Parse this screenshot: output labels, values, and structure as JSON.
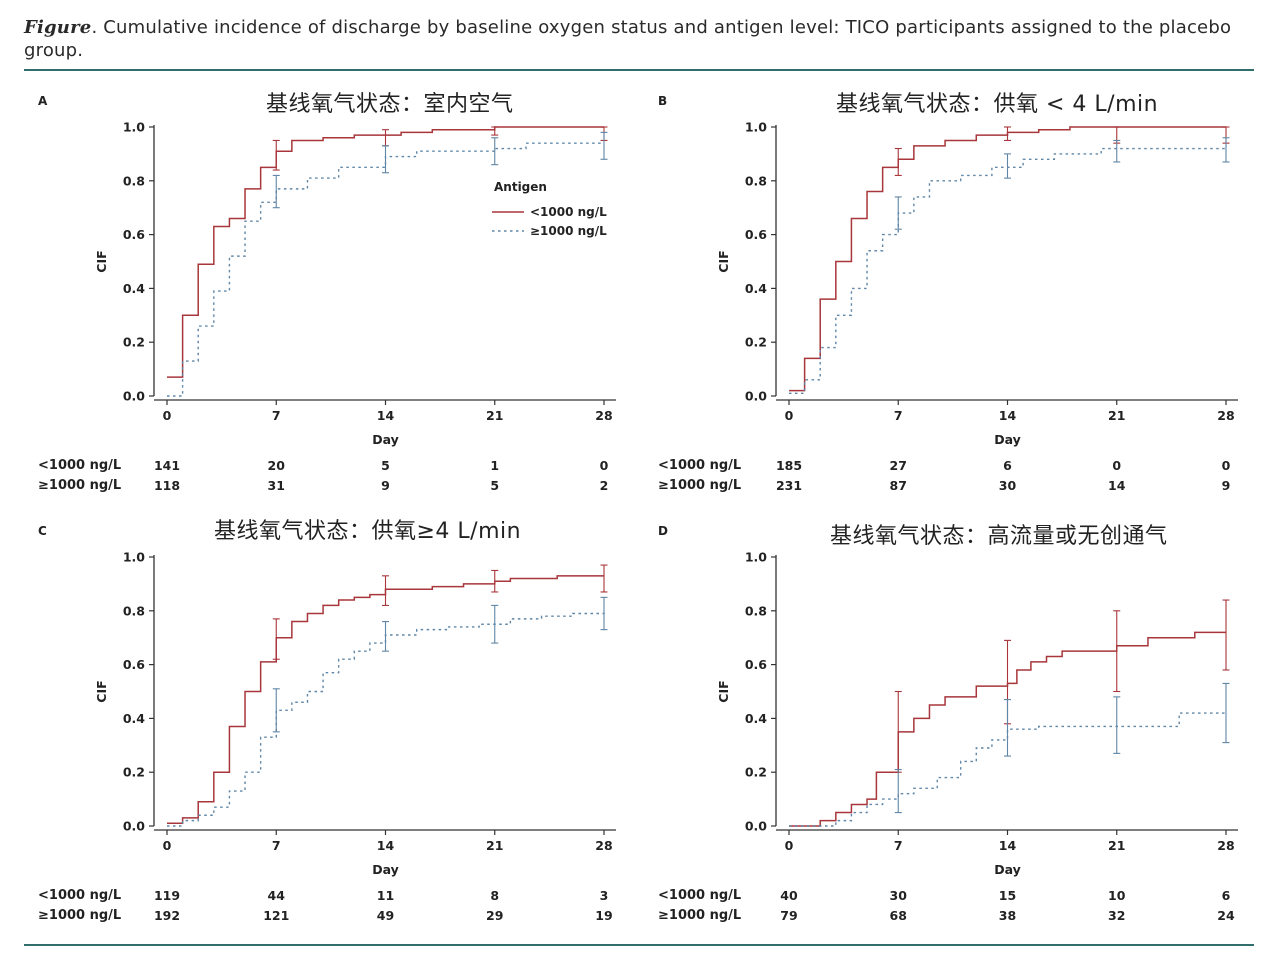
{
  "caption": {
    "lead": "Figure",
    "text": ". Cumulative incidence of discharge by baseline oxygen status and antigen level: TICO participants assigned to the placebo group."
  },
  "colors": {
    "solid": "#a8363a",
    "dashed": "#5f86a6",
    "axis": "#333333",
    "rule": "#2f6e6b"
  },
  "chart_data": [
    {
      "panel": "A",
      "type": "line",
      "title": "基线氧气状态：室内空气",
      "xlabel": "Day",
      "ylabel": "CIF",
      "xlim": [
        0,
        28
      ],
      "ylim": [
        0,
        1.0
      ],
      "xticks": [
        "0",
        "7",
        "14",
        "21",
        "28"
      ],
      "yticks": [
        "0.0",
        "0.2",
        "0.4",
        "0.6",
        "0.8",
        "1.0"
      ],
      "legend": {
        "title": "Antigen",
        "position": "right-middle",
        "items": [
          "<1000 ng/L",
          "≥1000 ng/L"
        ]
      },
      "series": [
        {
          "name": "<1000 ng/L",
          "style": "solid",
          "steps": [
            [
              0,
              0.07
            ],
            [
              1,
              0.3
            ],
            [
              2,
              0.49
            ],
            [
              3,
              0.63
            ],
            [
              4,
              0.66
            ],
            [
              5,
              0.77
            ],
            [
              6,
              0.85
            ],
            [
              7,
              0.91
            ],
            [
              8,
              0.95
            ],
            [
              10,
              0.96
            ],
            [
              12,
              0.97
            ],
            [
              15,
              0.98
            ],
            [
              17,
              0.99
            ],
            [
              21,
              1.0
            ],
            [
              28,
              1.0
            ]
          ],
          "errorbars": [
            [
              7,
              0.84,
              0.95
            ],
            [
              14,
              0.93,
              0.99
            ],
            [
              21,
              0.97,
              1.0
            ],
            [
              28,
              0.95,
              1.0
            ]
          ]
        },
        {
          "name": "≥1000 ng/L",
          "style": "dashed",
          "steps": [
            [
              0,
              0.0
            ],
            [
              1,
              0.13
            ],
            [
              2,
              0.26
            ],
            [
              3,
              0.39
            ],
            [
              4,
              0.52
            ],
            [
              5,
              0.65
            ],
            [
              6,
              0.72
            ],
            [
              7,
              0.77
            ],
            [
              9,
              0.81
            ],
            [
              11,
              0.85
            ],
            [
              14,
              0.89
            ],
            [
              16,
              0.91
            ],
            [
              21,
              0.92
            ],
            [
              23,
              0.94
            ],
            [
              28,
              0.94
            ]
          ],
          "errorbars": [
            [
              7,
              0.7,
              0.82
            ],
            [
              14,
              0.83,
              0.93
            ],
            [
              21,
              0.86,
              0.96
            ],
            [
              28,
              0.88,
              0.98
            ]
          ]
        }
      ],
      "risk_table": {
        "labels": [
          "<1000 ng/L",
          "≥1000 ng/L"
        ],
        "days": [
          0,
          7,
          14,
          21,
          28
        ],
        "rows": [
          [
            "141",
            "20",
            "5",
            "1",
            "0"
          ],
          [
            "118",
            "31",
            "9",
            "5",
            "2"
          ]
        ]
      }
    },
    {
      "panel": "B",
      "type": "line",
      "title": "基线氧气状态：供氧 < 4 L/min",
      "xlabel": "Day",
      "ylabel": "CIF",
      "xlim": [
        0,
        28
      ],
      "ylim": [
        0,
        1.0
      ],
      "xticks": [
        "0",
        "7",
        "14",
        "21",
        "28"
      ],
      "yticks": [
        "0.0",
        "0.2",
        "0.4",
        "0.6",
        "0.8",
        "1.0"
      ],
      "series": [
        {
          "name": "<1000 ng/L",
          "style": "solid",
          "steps": [
            [
              0,
              0.02
            ],
            [
              1,
              0.14
            ],
            [
              2,
              0.36
            ],
            [
              3,
              0.5
            ],
            [
              4,
              0.66
            ],
            [
              5,
              0.76
            ],
            [
              6,
              0.85
            ],
            [
              7,
              0.88
            ],
            [
              8,
              0.93
            ],
            [
              10,
              0.95
            ],
            [
              12,
              0.97
            ],
            [
              14,
              0.98
            ],
            [
              16,
              0.99
            ],
            [
              18,
              1.0
            ],
            [
              28,
              1.0
            ]
          ],
          "errorbars": [
            [
              7,
              0.82,
              0.92
            ],
            [
              14,
              0.95,
              1.0
            ],
            [
              21,
              0.94,
              1.0
            ],
            [
              28,
              0.94,
              1.0
            ]
          ]
        },
        {
          "name": "≥1000 ng/L",
          "style": "dashed",
          "steps": [
            [
              0,
              0.01
            ],
            [
              1,
              0.06
            ],
            [
              2,
              0.18
            ],
            [
              3,
              0.3
            ],
            [
              4,
              0.4
            ],
            [
              5,
              0.54
            ],
            [
              6,
              0.6
            ],
            [
              7,
              0.68
            ],
            [
              8,
              0.74
            ],
            [
              9,
              0.8
            ],
            [
              11,
              0.82
            ],
            [
              13,
              0.85
            ],
            [
              15,
              0.88
            ],
            [
              17,
              0.9
            ],
            [
              20,
              0.92
            ],
            [
              28,
              0.93
            ]
          ],
          "errorbars": [
            [
              7,
              0.62,
              0.74
            ],
            [
              14,
              0.81,
              0.9
            ],
            [
              21,
              0.87,
              0.95
            ],
            [
              28,
              0.87,
              0.96
            ]
          ]
        }
      ],
      "risk_table": {
        "labels": [
          "<1000 ng/L",
          "≥1000 ng/L"
        ],
        "days": [
          0,
          7,
          14,
          21,
          28
        ],
        "rows": [
          [
            "185",
            "27",
            "6",
            "0",
            "0"
          ],
          [
            "231",
            "87",
            "30",
            "14",
            "9"
          ]
        ]
      }
    },
    {
      "panel": "C",
      "type": "line",
      "title": "基线氧气状态：供氧≥4 L/min",
      "xlabel": "Day",
      "ylabel": "CIF",
      "xlim": [
        0,
        28
      ],
      "ylim": [
        0,
        1.0
      ],
      "xticks": [
        "0",
        "7",
        "14",
        "21",
        "28"
      ],
      "yticks": [
        "0.0",
        "0.2",
        "0.4",
        "0.6",
        "0.8",
        "1.0"
      ],
      "series": [
        {
          "name": "<1000 ng/L",
          "style": "solid",
          "steps": [
            [
              0,
              0.01
            ],
            [
              1,
              0.03
            ],
            [
              2,
              0.09
            ],
            [
              3,
              0.2
            ],
            [
              4,
              0.37
            ],
            [
              5,
              0.5
            ],
            [
              6,
              0.61
            ],
            [
              7,
              0.7
            ],
            [
              8,
              0.76
            ],
            [
              9,
              0.79
            ],
            [
              10,
              0.82
            ],
            [
              11,
              0.84
            ],
            [
              12,
              0.85
            ],
            [
              13,
              0.86
            ],
            [
              14,
              0.88
            ],
            [
              17,
              0.89
            ],
            [
              19,
              0.9
            ],
            [
              21,
              0.91
            ],
            [
              22,
              0.92
            ],
            [
              25,
              0.93
            ],
            [
              28,
              0.93
            ]
          ],
          "errorbars": [
            [
              7,
              0.62,
              0.77
            ],
            [
              14,
              0.82,
              0.93
            ],
            [
              21,
              0.87,
              0.95
            ],
            [
              28,
              0.87,
              0.97
            ]
          ]
        },
        {
          "name": "≥1000 ng/L",
          "style": "dashed",
          "steps": [
            [
              0,
              0.0
            ],
            [
              1,
              0.02
            ],
            [
              2,
              0.04
            ],
            [
              3,
              0.07
            ],
            [
              4,
              0.13
            ],
            [
              5,
              0.2
            ],
            [
              6,
              0.33
            ],
            [
              7,
              0.43
            ],
            [
              8,
              0.46
            ],
            [
              9,
              0.5
            ],
            [
              10,
              0.57
            ],
            [
              11,
              0.62
            ],
            [
              12,
              0.65
            ],
            [
              13,
              0.68
            ],
            [
              14,
              0.71
            ],
            [
              16,
              0.73
            ],
            [
              18,
              0.74
            ],
            [
              20,
              0.75
            ],
            [
              22,
              0.77
            ],
            [
              24,
              0.78
            ],
            [
              26,
              0.79
            ],
            [
              28,
              0.8
            ]
          ],
          "errorbars": [
            [
              7,
              0.35,
              0.51
            ],
            [
              14,
              0.65,
              0.76
            ],
            [
              21,
              0.68,
              0.82
            ],
            [
              28,
              0.73,
              0.85
            ]
          ]
        }
      ],
      "risk_table": {
        "labels": [
          "<1000 ng/L",
          "≥1000 ng/L"
        ],
        "days": [
          0,
          7,
          14,
          21,
          28
        ],
        "rows": [
          [
            "119",
            "44",
            "11",
            "8",
            "3"
          ],
          [
            "192",
            "121",
            "49",
            "29",
            "19"
          ]
        ]
      }
    },
    {
      "panel": "D",
      "type": "line",
      "title": "基线氧气状态：高流量或无创通气",
      "xlabel": "Day",
      "ylabel": "CIF",
      "xlim": [
        0,
        28
      ],
      "ylim": [
        0,
        1.0
      ],
      "xticks": [
        "0",
        "7",
        "14",
        "21",
        "28"
      ],
      "yticks": [
        "0.0",
        "0.2",
        "0.4",
        "0.6",
        "0.8",
        "1.0"
      ],
      "series": [
        {
          "name": "<1000 ng/L",
          "style": "solid",
          "steps": [
            [
              0,
              0.0
            ],
            [
              2,
              0.02
            ],
            [
              3,
              0.05
            ],
            [
              4,
              0.08
            ],
            [
              5,
              0.1
            ],
            [
              5.6,
              0.2
            ],
            [
              7,
              0.35
            ],
            [
              8,
              0.4
            ],
            [
              9,
              0.45
            ],
            [
              10,
              0.48
            ],
            [
              12,
              0.52
            ],
            [
              14,
              0.53
            ],
            [
              14.6,
              0.58
            ],
            [
              15.5,
              0.61
            ],
            [
              16.5,
              0.63
            ],
            [
              17.5,
              0.65
            ],
            [
              21,
              0.67
            ],
            [
              23,
              0.7
            ],
            [
              26,
              0.72
            ],
            [
              28,
              0.72
            ]
          ],
          "errorbars": [
            [
              7,
              0.2,
              0.5
            ],
            [
              14,
              0.38,
              0.69
            ],
            [
              21,
              0.5,
              0.8
            ],
            [
              28,
              0.58,
              0.84
            ]
          ]
        },
        {
          "name": "≥1000 ng/L",
          "style": "dashed",
          "steps": [
            [
              0,
              0.0
            ],
            [
              3,
              0.02
            ],
            [
              4,
              0.05
            ],
            [
              5,
              0.08
            ],
            [
              6,
              0.1
            ],
            [
              7,
              0.12
            ],
            [
              8,
              0.14
            ],
            [
              9.5,
              0.18
            ],
            [
              11,
              0.24
            ],
            [
              12,
              0.29
            ],
            [
              13,
              0.32
            ],
            [
              14,
              0.36
            ],
            [
              16,
              0.37
            ],
            [
              25,
              0.42
            ],
            [
              28,
              0.42
            ]
          ],
          "errorbars": [
            [
              7,
              0.05,
              0.21
            ],
            [
              14,
              0.26,
              0.47
            ],
            [
              21,
              0.27,
              0.48
            ],
            [
              28,
              0.31,
              0.53
            ]
          ]
        }
      ],
      "risk_table": {
        "labels": [
          "<1000 ng/L",
          "≥1000 ng/L"
        ],
        "days": [
          0,
          7,
          14,
          21,
          28
        ],
        "rows": [
          [
            "40",
            "30",
            "15",
            "10",
            "6"
          ],
          [
            "79",
            "68",
            "38",
            "32",
            "24"
          ]
        ]
      }
    }
  ]
}
